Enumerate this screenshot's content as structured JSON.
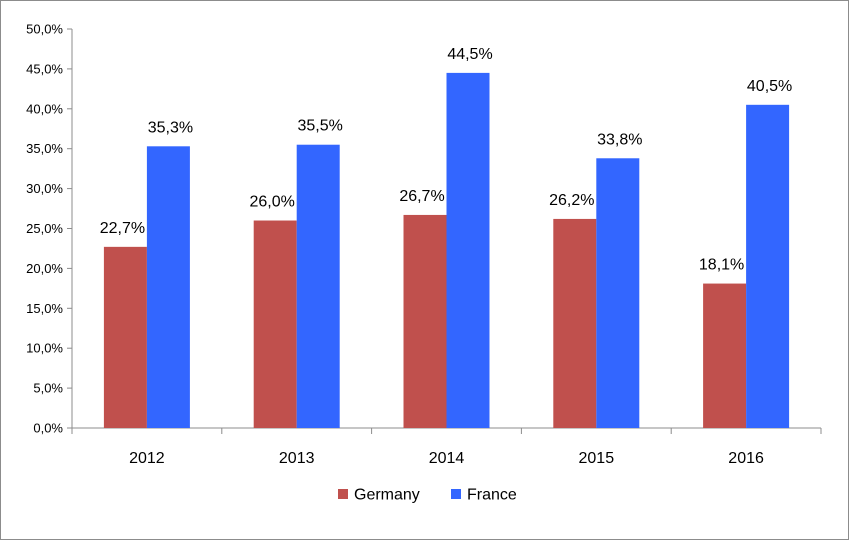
{
  "chart_data": {
    "type": "bar",
    "title": "",
    "xlabel": "",
    "ylabel": "",
    "categories": [
      "2012",
      "2013",
      "2014",
      "2015",
      "2016"
    ],
    "series": [
      {
        "name": "Germany",
        "color": "#c0504d",
        "values": [
          22.7,
          26.0,
          26.7,
          26.2,
          18.1
        ],
        "labels": [
          "22,7%",
          "26,0%",
          "26,7%",
          "26,2%",
          "18,1%"
        ]
      },
      {
        "name": "France",
        "color": "#3366ff",
        "values": [
          35.3,
          35.5,
          44.5,
          33.8,
          40.5
        ],
        "labels": [
          "35,3%",
          "35,5%",
          "44,5%",
          "33,8%",
          "40,5%"
        ]
      }
    ],
    "ylim": [
      0,
      50
    ],
    "yticks": [
      0,
      5,
      10,
      15,
      20,
      25,
      30,
      35,
      40,
      45,
      50
    ],
    "ytick_labels": [
      "0,0%",
      "5,0%",
      "10,0%",
      "15,0%",
      "20,0%",
      "25,0%",
      "30,0%",
      "35,0%",
      "40,0%",
      "45,0%",
      "50,0%"
    ],
    "grid": false,
    "legend": "bottom"
  }
}
